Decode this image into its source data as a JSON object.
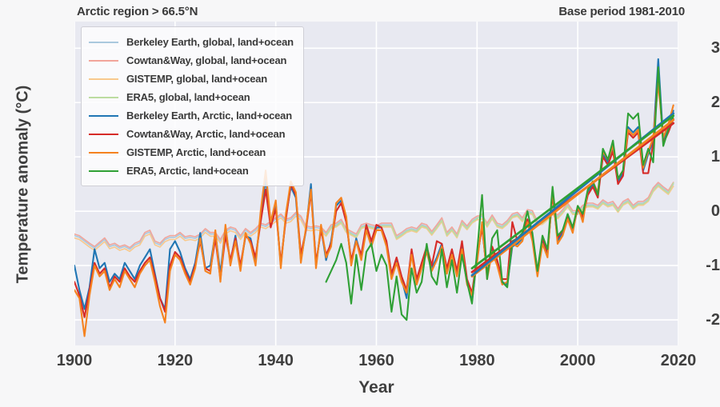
{
  "header": {
    "left": "Arctic region > 66.5°N",
    "right": "Base period 1981-2010"
  },
  "chart_data": {
    "type": "line",
    "title": "Arctic region > 66.5°N",
    "annotation": "Base period 1981-2010",
    "xlabel": "Year",
    "ylabel": "Temperature anomaly (°C)",
    "xlim": [
      1900,
      2020
    ],
    "ylim": [
      -2.47,
      3.49
    ],
    "x_ticks": [
      1900,
      1920,
      1940,
      1960,
      1980,
      2000,
      2020
    ],
    "y_ticks": [
      -2,
      -1,
      0,
      1,
      2,
      3
    ],
    "grid": true,
    "legend_position": "upper left",
    "colors": {
      "plot_background": "#e8e9f1",
      "figure_background": "#f7f7f8",
      "gridline": "#ffffff",
      "berkeley_global": "#aac9de",
      "cowtan_global": "#f2a59b",
      "gistemp_global": "#f8c98d",
      "era5_global": "#bcdca0",
      "berkeley_arctic": "#2076b4",
      "cowtan_arctic": "#d62b28",
      "gistemp_arctic": "#f5821f",
      "era5_arctic": "#2fa035"
    },
    "series": [
      {
        "name": "Berkeley Earth, global, land+ocean",
        "key": "berkeley_global",
        "color": "#aac9de",
        "line_width": 1.6,
        "start_year": 1900,
        "values": [
          -0.45,
          -0.48,
          -0.55,
          -0.62,
          -0.68,
          -0.6,
          -0.52,
          -0.65,
          -0.62,
          -0.68,
          -0.65,
          -0.7,
          -0.62,
          -0.58,
          -0.42,
          -0.38,
          -0.58,
          -0.62,
          -0.52,
          -0.48,
          -0.48,
          -0.42,
          -0.5,
          -0.48,
          -0.5,
          -0.45,
          -0.35,
          -0.42,
          -0.42,
          -0.55,
          -0.38,
          -0.32,
          -0.35,
          -0.48,
          -0.35,
          -0.42,
          -0.35,
          -0.25,
          -0.28,
          -0.22,
          -0.15,
          -0.08,
          -0.18,
          -0.15,
          -0.05,
          -0.12,
          -0.3,
          -0.32,
          -0.3,
          -0.32,
          -0.42,
          -0.28,
          -0.25,
          -0.18,
          -0.35,
          -0.4,
          -0.45,
          -0.28,
          -0.25,
          -0.28,
          -0.3,
          -0.25,
          -0.25,
          -0.25,
          -0.48,
          -0.42,
          -0.35,
          -0.32,
          -0.35,
          -0.25,
          -0.28,
          -0.4,
          -0.28,
          -0.15,
          -0.42,
          -0.32,
          -0.45,
          -0.2,
          -0.3,
          -0.18,
          -0.12,
          -0.1,
          -0.25,
          -0.1,
          -0.25,
          -0.28,
          -0.2,
          -0.08,
          -0.05,
          -0.15,
          0.0,
          -0.02,
          -0.22,
          -0.2,
          -0.12,
          -0.02,
          -0.1,
          0.0,
          0.12,
          -0.02,
          -0.02,
          0.08,
          0.12,
          0.12,
          0.08,
          0.18,
          0.12,
          0.15,
          0.02,
          0.15,
          0.2,
          0.08,
          0.15,
          0.15,
          0.22,
          0.4,
          0.5,
          0.42,
          0.35,
          0.5
        ]
      },
      {
        "name": "Cowtan&Way, global, land+ocean",
        "key": "cowtan_global",
        "color": "#f2a59b",
        "line_width": 1.6,
        "start_year": 1900,
        "values": [
          -0.42,
          -0.45,
          -0.52,
          -0.59,
          -0.65,
          -0.57,
          -0.49,
          -0.62,
          -0.59,
          -0.65,
          -0.62,
          -0.67,
          -0.59,
          -0.55,
          -0.39,
          -0.35,
          -0.55,
          -0.59,
          -0.49,
          -0.45,
          -0.45,
          -0.39,
          -0.47,
          -0.45,
          -0.47,
          -0.42,
          -0.32,
          -0.39,
          -0.39,
          -0.52,
          -0.35,
          -0.29,
          -0.32,
          -0.45,
          -0.32,
          -0.39,
          -0.32,
          -0.22,
          -0.25,
          -0.19,
          -0.12,
          -0.05,
          -0.15,
          -0.12,
          -0.02,
          -0.09,
          -0.27,
          -0.29,
          -0.27,
          -0.29,
          -0.39,
          -0.25,
          -0.22,
          -0.15,
          -0.32,
          -0.37,
          -0.42,
          -0.25,
          -0.22,
          -0.25,
          -0.27,
          -0.22,
          -0.22,
          -0.22,
          -0.45,
          -0.39,
          -0.32,
          -0.29,
          -0.32,
          -0.22,
          -0.25,
          -0.37,
          -0.25,
          -0.12,
          -0.39,
          -0.29,
          -0.42,
          -0.17,
          -0.27,
          -0.15,
          -0.09,
          -0.07,
          -0.22,
          -0.07,
          -0.22,
          -0.25,
          -0.17,
          -0.05,
          -0.02,
          -0.12,
          0.03,
          0.01,
          -0.19,
          -0.17,
          -0.09,
          0.01,
          -0.07,
          0.03,
          0.15,
          0.01,
          0.01,
          0.11,
          0.15,
          0.15,
          0.11,
          0.21,
          0.15,
          0.18,
          0.05,
          0.18,
          0.23,
          0.11,
          0.18,
          0.18,
          0.25,
          0.43,
          0.53,
          0.45,
          0.38,
          0.53
        ]
      },
      {
        "name": "GISTEMP, global, land+ocean",
        "key": "gistemp_global",
        "color": "#f8c98d",
        "line_width": 1.6,
        "start_year": 1900,
        "values": [
          -0.49,
          -0.52,
          -0.59,
          -0.66,
          -0.72,
          -0.64,
          -0.56,
          -0.69,
          -0.66,
          -0.72,
          -0.69,
          -0.74,
          -0.66,
          -0.62,
          -0.46,
          -0.42,
          -0.62,
          -0.66,
          -0.56,
          -0.52,
          -0.52,
          -0.46,
          -0.54,
          -0.52,
          -0.54,
          -0.49,
          -0.39,
          -0.46,
          -0.46,
          -0.59,
          -0.42,
          -0.36,
          -0.39,
          -0.52,
          -0.39,
          -0.46,
          -0.39,
          -0.29,
          -0.32,
          -0.26,
          -0.19,
          -0.12,
          -0.22,
          -0.19,
          -0.09,
          -0.16,
          -0.34,
          -0.36,
          -0.34,
          -0.36,
          -0.46,
          -0.32,
          -0.29,
          -0.22,
          -0.39,
          -0.44,
          -0.49,
          -0.32,
          -0.29,
          -0.32,
          -0.34,
          -0.29,
          -0.29,
          -0.29,
          -0.52,
          -0.46,
          -0.39,
          -0.36,
          -0.39,
          -0.29,
          -0.32,
          -0.44,
          -0.32,
          -0.19,
          -0.46,
          -0.36,
          -0.49,
          -0.24,
          -0.34,
          -0.22,
          -0.16,
          -0.14,
          -0.29,
          -0.14,
          -0.29,
          -0.32,
          -0.24,
          -0.12,
          -0.09,
          -0.19,
          -0.04,
          -0.06,
          -0.26,
          -0.24,
          -0.16,
          -0.06,
          -0.14,
          -0.04,
          0.08,
          -0.06,
          -0.06,
          0.04,
          0.08,
          0.08,
          0.04,
          0.14,
          0.08,
          0.11,
          -0.02,
          0.11,
          0.16,
          0.04,
          0.11,
          0.11,
          0.18,
          0.36,
          0.46,
          0.38,
          0.31,
          0.46
        ]
      },
      {
        "name": "ERA5, global, land+ocean",
        "key": "era5_global",
        "color": "#bcdca0",
        "line_width": 1.6,
        "start_year": 1950,
        "values": [
          -0.44,
          -0.3,
          -0.27,
          -0.2,
          -0.37,
          -0.42,
          -0.47,
          -0.3,
          -0.27,
          -0.3,
          -0.32,
          -0.27,
          -0.27,
          -0.27,
          -0.5,
          -0.44,
          -0.37,
          -0.34,
          -0.37,
          -0.27,
          -0.3,
          -0.42,
          -0.3,
          -0.17,
          -0.44,
          -0.34,
          -0.47,
          -0.22,
          -0.32,
          -0.2,
          -0.14,
          -0.05,
          -0.27,
          -0.12,
          -0.27,
          -0.3,
          -0.22,
          -0.1,
          -0.07,
          -0.17,
          -0.02,
          -0.04,
          -0.24,
          -0.22,
          -0.14,
          -0.04,
          -0.12,
          -0.02,
          0.1,
          -0.04,
          -0.04,
          0.06,
          0.1,
          0.1,
          0.06,
          0.16,
          0.1,
          0.13,
          0.0,
          0.13,
          0.18,
          0.06,
          0.13,
          0.13,
          0.2,
          0.38,
          0.48,
          0.4,
          0.33,
          0.52
        ]
      },
      {
        "name": "Berkeley Earth, Arctic, land+ocean",
        "key": "berkeley_arctic",
        "color": "#2076b4",
        "line_width": 2.1,
        "start_year": 1900,
        "values": [
          -1.0,
          -1.45,
          -1.8,
          -1.4,
          -0.7,
          -1.05,
          -0.95,
          -1.3,
          -1.15,
          -1.25,
          -0.95,
          -1.1,
          -1.25,
          -1.0,
          -0.85,
          -0.7,
          -1.15,
          -1.6,
          -1.8,
          -0.7,
          -0.55,
          -0.75,
          -1.05,
          -1.25,
          -0.95,
          -0.4,
          -1.05,
          -1.0,
          -0.4,
          -1.15,
          -0.3,
          -0.95,
          -0.45,
          -1.05,
          -0.45,
          -0.5,
          -0.9,
          -0.1,
          0.6,
          -0.25,
          0.15,
          -1.0,
          -0.1,
          0.45,
          0.25,
          -0.9,
          -0.35,
          0.5,
          -1.0,
          -0.3,
          -0.9,
          -0.55,
          0.1,
          0.2,
          -0.15,
          -0.95,
          -0.5,
          -0.85,
          -0.3,
          -0.6,
          -0.3,
          -0.3,
          -0.6,
          -1.2,
          -0.9,
          -1.25,
          -1.6,
          -0.75,
          -1.3,
          -1.0,
          -0.7,
          -1.05,
          -0.85,
          -0.6,
          -1.1,
          -0.75,
          -1.15,
          -0.65,
          -1.3,
          -1.65,
          -0.9,
          -0.25,
          -1.2,
          -0.7,
          -0.95,
          -1.3,
          -1.35,
          -0.65,
          -0.6,
          -0.5,
          -0.15,
          -0.5,
          -1.15,
          -0.55,
          -0.8,
          0.35,
          -0.55,
          -0.4,
          -0.1,
          -0.35,
          0.05,
          -0.15,
          0.35,
          0.5,
          0.3,
          1.05,
          0.9,
          1.15,
          0.55,
          0.7,
          1.55,
          1.45,
          1.55,
          0.75,
          1.05,
          1.3,
          2.8,
          1.3,
          1.55,
          1.85
        ]
      },
      {
        "name": "Cowtan&Way, Arctic, land+ocean",
        "key": "cowtan_arctic",
        "color": "#d62b28",
        "line_width": 2.1,
        "start_year": 1900,
        "values": [
          -1.3,
          -1.55,
          -1.95,
          -1.45,
          -0.95,
          -1.15,
          -1.05,
          -1.4,
          -1.2,
          -1.3,
          -1.05,
          -1.2,
          -1.3,
          -1.1,
          -0.95,
          -0.85,
          -1.2,
          -1.6,
          -1.85,
          -1.0,
          -0.75,
          -0.85,
          -1.1,
          -1.3,
          -1.0,
          -0.55,
          -1.05,
          -1.1,
          -0.5,
          -1.25,
          -0.45,
          -0.9,
          -0.5,
          -1.0,
          -0.45,
          -0.55,
          -0.85,
          -0.2,
          0.4,
          -0.3,
          0.05,
          -0.95,
          -0.15,
          0.5,
          0.3,
          -0.8,
          -0.35,
          0.35,
          -0.95,
          -0.35,
          -0.8,
          -0.6,
          0.0,
          0.15,
          -0.2,
          -0.9,
          -0.55,
          -0.8,
          -0.25,
          -0.55,
          -0.25,
          -0.3,
          -0.55,
          -1.15,
          -0.85,
          -1.2,
          -1.45,
          -0.7,
          -1.25,
          -0.95,
          -0.65,
          -1.0,
          -0.55,
          -0.6,
          -1.05,
          -0.7,
          -1.1,
          -0.55,
          -1.25,
          -1.5,
          -0.85,
          -0.3,
          -1.15,
          -0.65,
          -0.9,
          -1.25,
          -1.25,
          -0.2,
          -0.55,
          -0.45,
          -0.15,
          -0.45,
          -1.1,
          -0.5,
          -0.75,
          0.3,
          -0.5,
          -0.35,
          -0.1,
          -0.3,
          0.05,
          -0.1,
          0.3,
          0.45,
          0.25,
          1.0,
          0.85,
          1.1,
          0.5,
          0.65,
          1.45,
          1.35,
          1.45,
          0.7,
          0.7,
          1.25,
          2.55,
          1.25,
          1.45,
          1.7
        ]
      },
      {
        "name": "GISTEMP, Arctic, land+ocean",
        "key": "gistemp_arctic",
        "color": "#f5821f",
        "line_width": 2.1,
        "start_year": 1900,
        "values": [
          -1.45,
          -1.6,
          -2.3,
          -1.55,
          -1.0,
          -1.2,
          -1.1,
          -1.45,
          -1.25,
          -1.4,
          -1.1,
          -1.25,
          -1.4,
          -1.15,
          -1.0,
          -0.9,
          -1.3,
          -1.75,
          -2.05,
          -1.1,
          -0.8,
          -0.9,
          -1.15,
          -1.35,
          -1.05,
          -0.5,
          -1.1,
          -1.15,
          -0.35,
          -1.3,
          -0.25,
          -1.0,
          -0.55,
          -1.1,
          -0.4,
          -0.6,
          -1.0,
          0.0,
          0.75,
          -0.2,
          0.2,
          -1.05,
          -0.05,
          0.55,
          0.35,
          -0.95,
          -0.3,
          0.4,
          -1.05,
          -0.25,
          -0.85,
          -0.65,
          0.15,
          0.25,
          -0.1,
          -1.0,
          -0.55,
          -0.9,
          -0.35,
          -0.65,
          -0.35,
          -0.35,
          -0.65,
          -1.25,
          -0.95,
          -1.3,
          -1.5,
          -0.8,
          -1.35,
          -1.05,
          -0.75,
          -1.1,
          -0.9,
          -0.65,
          -1.15,
          -0.8,
          -1.2,
          -0.7,
          -1.35,
          -1.55,
          -0.95,
          -0.2,
          -1.25,
          -0.75,
          -1.0,
          -1.35,
          -1.3,
          -0.6,
          -0.65,
          -0.55,
          -0.2,
          -0.55,
          -1.2,
          -0.6,
          -0.85,
          0.4,
          -0.6,
          -0.45,
          -0.15,
          -0.4,
          0.1,
          -0.2,
          0.4,
          0.55,
          0.35,
          1.1,
          0.95,
          1.2,
          0.6,
          0.75,
          1.5,
          1.4,
          1.5,
          0.8,
          1.1,
          1.35,
          2.35,
          1.35,
          1.6,
          1.95
        ]
      },
      {
        "name": "ERA5, Arctic, land+ocean",
        "key": "era5_arctic",
        "color": "#2fa035",
        "line_width": 2.1,
        "start_year": 1950,
        "values": [
          -1.3,
          -1.1,
          -0.9,
          -0.6,
          -0.95,
          -1.7,
          -0.8,
          -1.45,
          -0.75,
          -0.6,
          -1.1,
          -0.8,
          -1.0,
          -1.85,
          -1.2,
          -1.9,
          -2.0,
          -1.05,
          -1.5,
          -1.3,
          -0.6,
          -1.2,
          -1.35,
          -0.7,
          -1.4,
          -0.9,
          -1.5,
          -0.8,
          -1.3,
          -1.7,
          -0.75,
          0.3,
          -1.25,
          -0.5,
          -0.35,
          -1.3,
          -1.4,
          -0.55,
          -0.5,
          -0.4,
          0.0,
          -0.4,
          -1.1,
          -0.45,
          -0.7,
          0.45,
          -0.45,
          -0.35,
          -0.05,
          -0.3,
          0.1,
          -0.05,
          0.4,
          0.55,
          0.3,
          1.15,
          0.95,
          1.3,
          0.6,
          0.75,
          1.8,
          1.7,
          1.8,
          0.85,
          1.15,
          0.9,
          2.65,
          1.2,
          1.5,
          1.75
        ]
      }
    ],
    "trend_lines": [
      {
        "name": "Cowtan&Way Arctic trend",
        "color": "#d62b28",
        "line_width": 2.8,
        "x": [
          1979,
          2019
        ],
        "y": [
          -1.12,
          1.62
        ]
      },
      {
        "name": "GISTEMP Arctic trend",
        "color": "#f5821f",
        "line_width": 2.8,
        "x": [
          1979,
          2019
        ],
        "y": [
          -1.2,
          1.68
        ]
      },
      {
        "name": "Berkeley Earth Arctic trend",
        "color": "#2076b4",
        "line_width": 2.8,
        "x": [
          1979,
          2019
        ],
        "y": [
          -1.18,
          1.8
        ]
      },
      {
        "name": "ERA5 Arctic trend",
        "color": "#2fa035",
        "line_width": 2.8,
        "x": [
          1979,
          2019
        ],
        "y": [
          -1.05,
          1.76
        ]
      }
    ]
  },
  "axes": {
    "xlabel": "Year",
    "ylabel": "Temperature anomaly (°C)",
    "x_tick_labels": [
      "1900",
      "1920",
      "1940",
      "1960",
      "1980",
      "2000",
      "2020"
    ],
    "y_tick_labels": [
      "-2",
      "-1",
      "0",
      "1",
      "2",
      "3"
    ]
  },
  "legend": {
    "labels": [
      "Berkeley Earth, global, land+ocean",
      "Cowtan&Way, global, land+ocean",
      "GISTEMP, global, land+ocean",
      "ERA5, global, land+ocean",
      "Berkeley Earth, Arctic, land+ocean",
      "Cowtan&Way, Arctic, land+ocean",
      "GISTEMP, Arctic, land+ocean",
      "ERA5, Arctic, land+ocean"
    ]
  }
}
